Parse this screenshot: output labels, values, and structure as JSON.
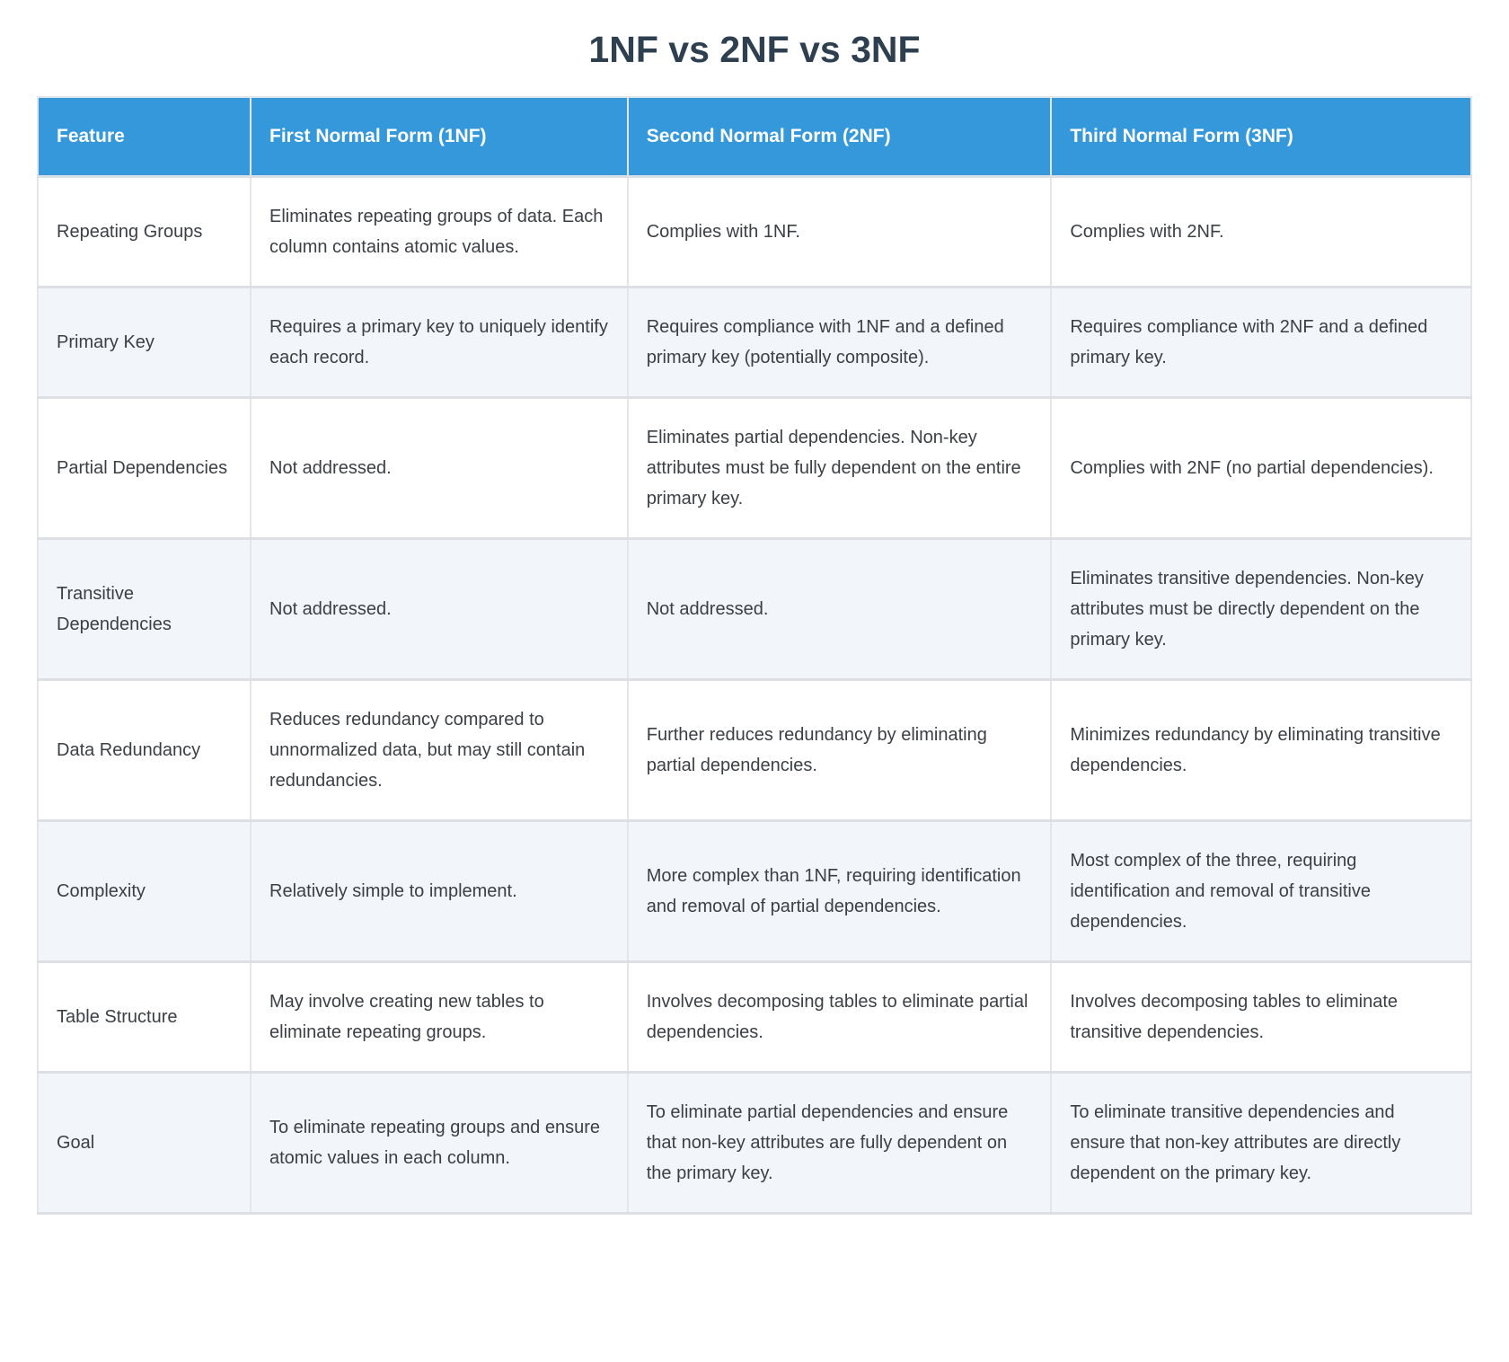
{
  "title": "1NF vs 2NF vs 3NF",
  "colors": {
    "header_bg": "#3498db",
    "header_text": "#ffffff",
    "title_text": "#2e3f50",
    "alt_row_bg": "#f2f5f9",
    "body_text": "#3b4045",
    "border": "#e2e5e9"
  },
  "table": {
    "columns": [
      "Feature",
      "First Normal Form (1NF)",
      "Second Normal Form (2NF)",
      "Third Normal Form (3NF)"
    ],
    "rows": [
      {
        "feature": "Repeating Groups",
        "nf1": "Eliminates repeating groups of data. Each column contains atomic values.",
        "nf2": "Complies with 1NF.",
        "nf3": "Complies with 2NF."
      },
      {
        "feature": "Primary Key",
        "nf1": "Requires a primary key to uniquely identify each record.",
        "nf2": "Requires compliance with 1NF and a defined primary key (potentially composite).",
        "nf3": "Requires compliance with 2NF and a defined primary key."
      },
      {
        "feature": "Partial Dependencies",
        "nf1": "Not addressed.",
        "nf2": "Eliminates partial dependencies. Non-key attributes must be fully dependent on the entire primary key.",
        "nf3": "Complies with 2NF (no partial dependencies)."
      },
      {
        "feature": "Transitive Dependencies",
        "nf1": "Not addressed.",
        "nf2": "Not addressed.",
        "nf3": "Eliminates transitive dependencies. Non-key attributes must be directly dependent on the primary key."
      },
      {
        "feature": "Data Redundancy",
        "nf1": "Reduces redundancy compared to unnormalized data, but may still contain redundancies.",
        "nf2": "Further reduces redundancy by eliminating partial dependencies.",
        "nf3": "Minimizes redundancy by eliminating transitive dependencies."
      },
      {
        "feature": "Complexity",
        "nf1": "Relatively simple to implement.",
        "nf2": "More complex than 1NF, requiring identification and removal of partial dependencies.",
        "nf3": "Most complex of the three, requiring identification and removal of transitive dependencies."
      },
      {
        "feature": "Table Structure",
        "nf1": "May involve creating new tables to eliminate repeating groups.",
        "nf2": "Involves decomposing tables to eliminate partial dependencies.",
        "nf3": "Involves decomposing tables to eliminate transitive dependencies."
      },
      {
        "feature": "Goal",
        "nf1": "To eliminate repeating groups and ensure atomic values in each column.",
        "nf2": "To eliminate partial dependencies and ensure that non-key attributes are fully dependent on the primary key.",
        "nf3": "To eliminate transitive dependencies and ensure that non-key attributes are directly dependent on the primary key."
      }
    ]
  }
}
